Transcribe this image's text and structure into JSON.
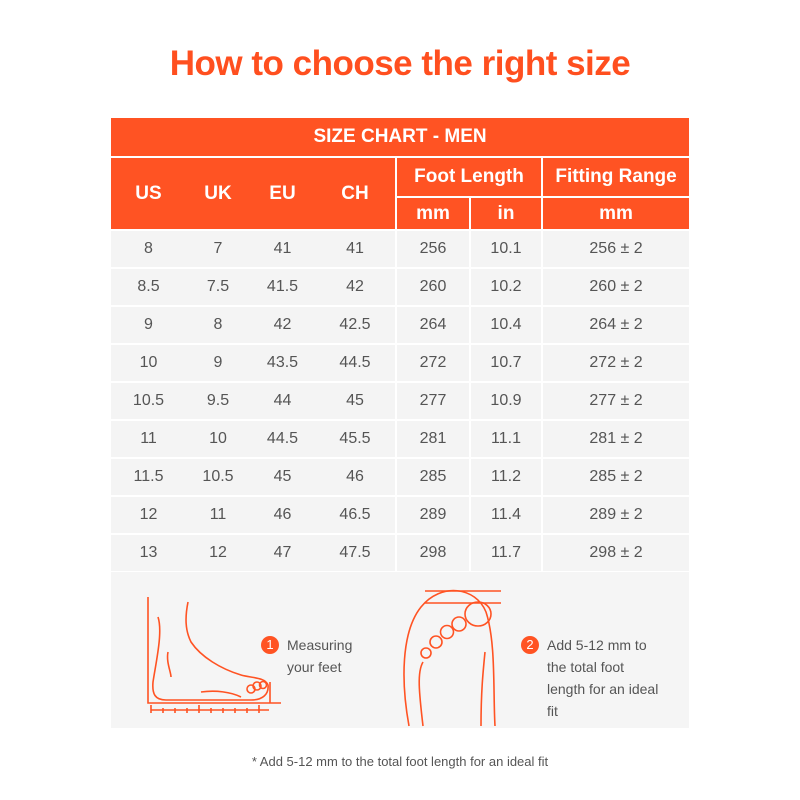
{
  "title": "How to choose the right size",
  "table": {
    "caption": "SIZE CHART - MEN",
    "headers": {
      "us": "US",
      "uk": "UK",
      "eu": "EU",
      "ch": "CH",
      "foot_length": "Foot Length",
      "fitting_range": "Fitting Range",
      "mm": "mm",
      "in": "in",
      "fit_mm": "mm"
    },
    "rows": [
      [
        "8",
        "7",
        "41",
        "41",
        "256",
        "10.1",
        "256 ± 2"
      ],
      [
        "8.5",
        "7.5",
        "41.5",
        "42",
        "260",
        "10.2",
        "260 ± 2"
      ],
      [
        "9",
        "8",
        "42",
        "42.5",
        "264",
        "10.4",
        "264 ± 2"
      ],
      [
        "10",
        "9",
        "43.5",
        "44.5",
        "272",
        "10.7",
        "272 ± 2"
      ],
      [
        "10.5",
        "9.5",
        "44",
        "45",
        "277",
        "10.9",
        "277 ± 2"
      ],
      [
        "11",
        "10",
        "44.5",
        "45.5",
        "281",
        "11.1",
        "281 ± 2"
      ],
      [
        "11.5",
        "10.5",
        "45",
        "46",
        "285",
        "11.2",
        "285 ± 2"
      ],
      [
        "12",
        "11",
        "46",
        "46.5",
        "289",
        "11.4",
        "289 ± 2"
      ],
      [
        "13",
        "12",
        "47",
        "47.5",
        "298",
        "11.7",
        "298 ± 2"
      ]
    ]
  },
  "steps": [
    {
      "num": "1",
      "text": "Measuring your feet"
    },
    {
      "num": "2",
      "text": "Add 5-12 mm to the total foot length for an ideal fit"
    }
  ],
  "footnote": "* Add 5-12 mm to the total foot length for an ideal fit",
  "colors": {
    "accent": "#ff5323"
  }
}
